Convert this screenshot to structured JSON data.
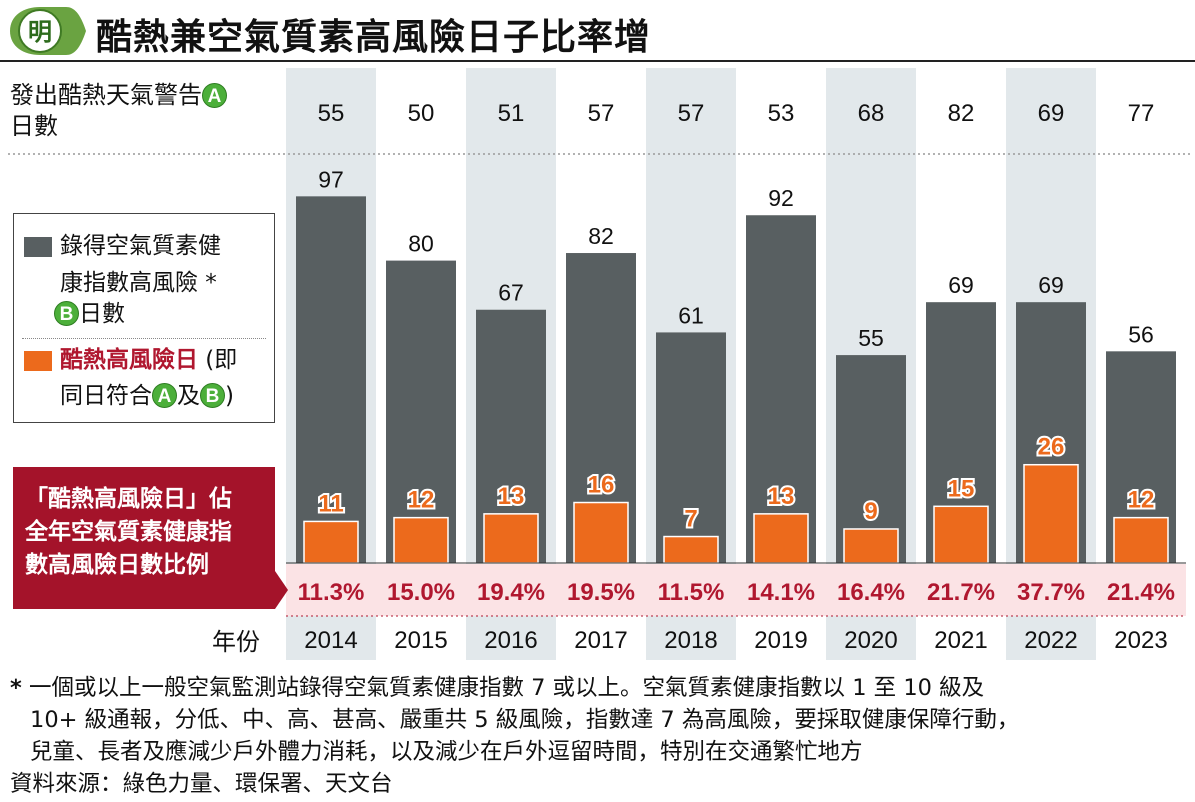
{
  "header": {
    "logo_text": "明",
    "title": "酷熱兼空氣質素高風險日子比率增"
  },
  "row_a": {
    "label_line1": "發出酷熱天氣警告",
    "label_line2": "日數",
    "badge": "A"
  },
  "legend": {
    "gray_line1": "錄得空氣質素健",
    "gray_line2": "康指數高風險 *",
    "gray_line3": "日數",
    "gray_badge": "B",
    "orange_line1_bold": "酷熱高風險日",
    "orange_line1_rest": " (即",
    "orange_line2_a": "同日符合",
    "orange_line2_b": "及",
    "orange_line2_c": ")",
    "badge_a": "A",
    "badge_b": "B"
  },
  "ratio_label": {
    "line1": "「酷熱高風險日」佔",
    "line2": "全年空氣質素健康指",
    "line3": "數高風險日數比例"
  },
  "year_row_label": "年份",
  "chart_data": {
    "type": "bar",
    "title": "酷熱兼空氣質素高風險日子比率增",
    "categories": [
      "2014",
      "2015",
      "2016",
      "2017",
      "2018",
      "2019",
      "2020",
      "2021",
      "2022",
      "2023"
    ],
    "series": [
      {
        "name": "錄得空氣質素健康指數高風險 * Ⓑ日數",
        "values": [
          97,
          80,
          67,
          82,
          61,
          92,
          55,
          69,
          69,
          56
        ],
        "color": "#585f61"
      },
      {
        "name": "酷熱高風險日 (即同日符合ⒶⒷ及)",
        "values": [
          11,
          12,
          13,
          16,
          7,
          13,
          9,
          15,
          26,
          12
        ],
        "color": "#ec6a1c"
      }
    ],
    "hot_weather_warning_days": [
      55,
      50,
      51,
      57,
      57,
      53,
      68,
      82,
      69,
      77
    ],
    "ratio": [
      "11.3%",
      "15.0%",
      "19.4%",
      "19.5%",
      "11.5%",
      "14.1%",
      "16.4%",
      "21.7%",
      "37.7%",
      "21.4%"
    ],
    "ylim": [
      0,
      100
    ],
    "shaded_years": [
      "2014",
      "2016",
      "2018",
      "2020",
      "2022"
    ],
    "colors": {
      "shade": "#e2e8eb",
      "ratio_band": "#fbe3e5",
      "ratio_text": "#b0172f",
      "label_box": "#a4132a",
      "badge": "#4caf3a"
    }
  },
  "footnote": {
    "star": "*",
    "line1": "一個或以上一般空氣監測站錄得空氣質素健康指數 7 或以上。空氣質素健康指數以 1 至 10 級及",
    "line2": "10+ 級通報，分低、中、高、甚高、嚴重共 5 級風險，指數達 7 為高風險，要採取健康保障行動，",
    "line3": "兒童、長者及應減少戶外體力消耗，以及減少在戶外逗留時間，特別在交通繁忙地方",
    "source": "資料來源：綠色力量、環保署、天文台"
  }
}
